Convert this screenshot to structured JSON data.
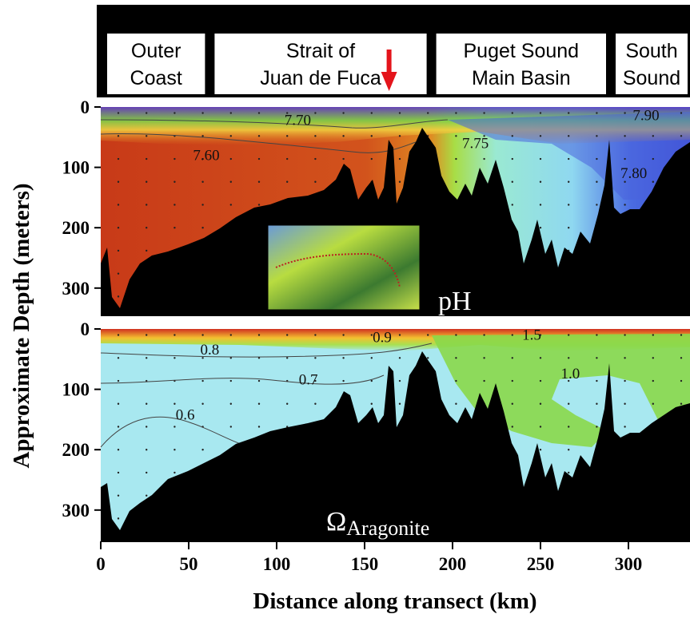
{
  "chart_data": {
    "type": "heatmap",
    "regions": [
      "Outer Coast",
      "Strait of Juan de Fuca",
      "Puget Sound Main Basin",
      "South Sound"
    ],
    "region_lines": [
      [
        "Outer",
        "Coast"
      ],
      [
        "Strait of",
        "Juan de Fuca"
      ],
      [
        "Puget Sound",
        "Main Basin"
      ],
      [
        "South",
        "Sound"
      ]
    ],
    "region_ranges_km": [
      [
        0,
        62
      ],
      [
        62,
        188
      ],
      [
        188,
        290
      ],
      [
        290,
        335
      ]
    ],
    "marker_km": 163,
    "marker_color": "#e4141b",
    "xlabel": "Distance along transect (km)",
    "ylabel": "Approximate Depth (meters)",
    "xlim": [
      0,
      335
    ],
    "ylim_depth_m": [
      0,
      350
    ],
    "xticks": [
      0,
      50,
      100,
      150,
      200,
      250,
      300
    ],
    "yticks": [
      0,
      100,
      200,
      300
    ],
    "panels": [
      {
        "label": "pH",
        "variable": "pH",
        "contour_labels": [
          {
            "text": "7.70",
            "km": 112,
            "depth_m": 30
          },
          {
            "text": "7.60",
            "km": 60,
            "depth_m": 88
          },
          {
            "text": "7.75",
            "km": 213,
            "depth_m": 68
          },
          {
            "text": "7.90",
            "km": 310,
            "depth_m": 22
          },
          {
            "text": "7.80",
            "km": 303,
            "depth_m": 118
          }
        ]
      },
      {
        "label_main": "Ω",
        "label_sub": "Aragonite",
        "variable": "Omega Aragonite",
        "contour_labels": [
          {
            "text": "0.9",
            "km": 160,
            "depth_m": 22
          },
          {
            "text": "0.8",
            "km": 62,
            "depth_m": 42
          },
          {
            "text": "0.7",
            "km": 118,
            "depth_m": 92
          },
          {
            "text": "0.6",
            "km": 48,
            "depth_m": 150
          },
          {
            "text": "1.5",
            "km": 245,
            "depth_m": 18
          },
          {
            "text": "1.0",
            "km": 267,
            "depth_m": 82
          }
        ]
      }
    ]
  }
}
